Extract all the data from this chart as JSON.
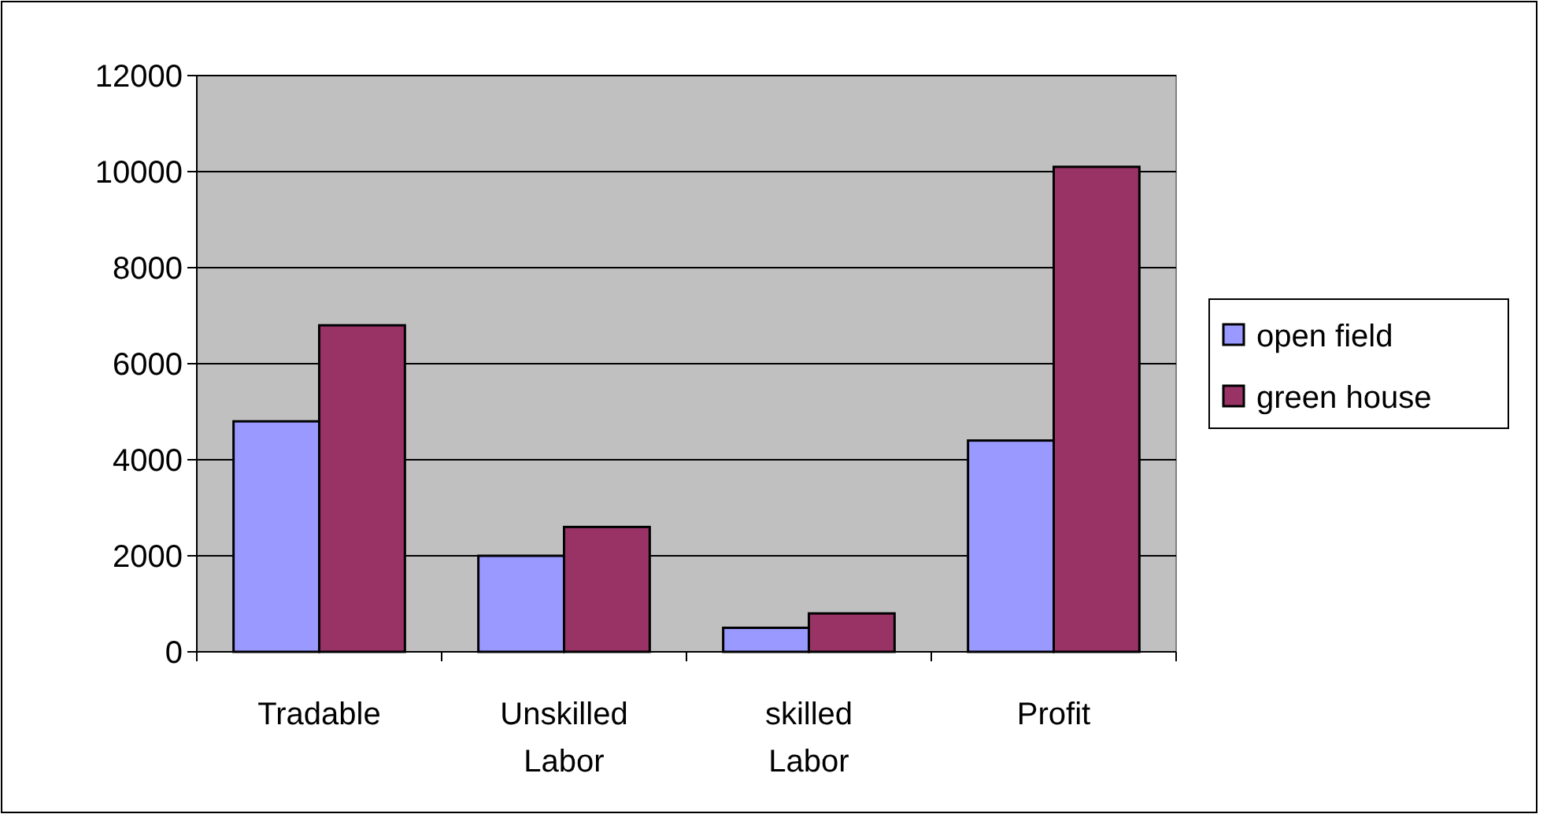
{
  "chart_data": {
    "type": "bar",
    "categories": [
      "Tradable",
      "Unskilled Labor",
      "skilled Labor",
      "Profit"
    ],
    "series": [
      {
        "name": "open field",
        "color": "#9999ff",
        "values": [
          4800,
          2000,
          500,
          4400
        ]
      },
      {
        "name": "green house",
        "color": "#993366",
        "values": [
          6800,
          2600,
          800,
          10100
        ]
      }
    ],
    "ylim": [
      0,
      12000
    ],
    "yticks": [
      0,
      2000,
      4000,
      6000,
      8000,
      10000,
      12000
    ],
    "grid": "y",
    "legend": "right"
  }
}
